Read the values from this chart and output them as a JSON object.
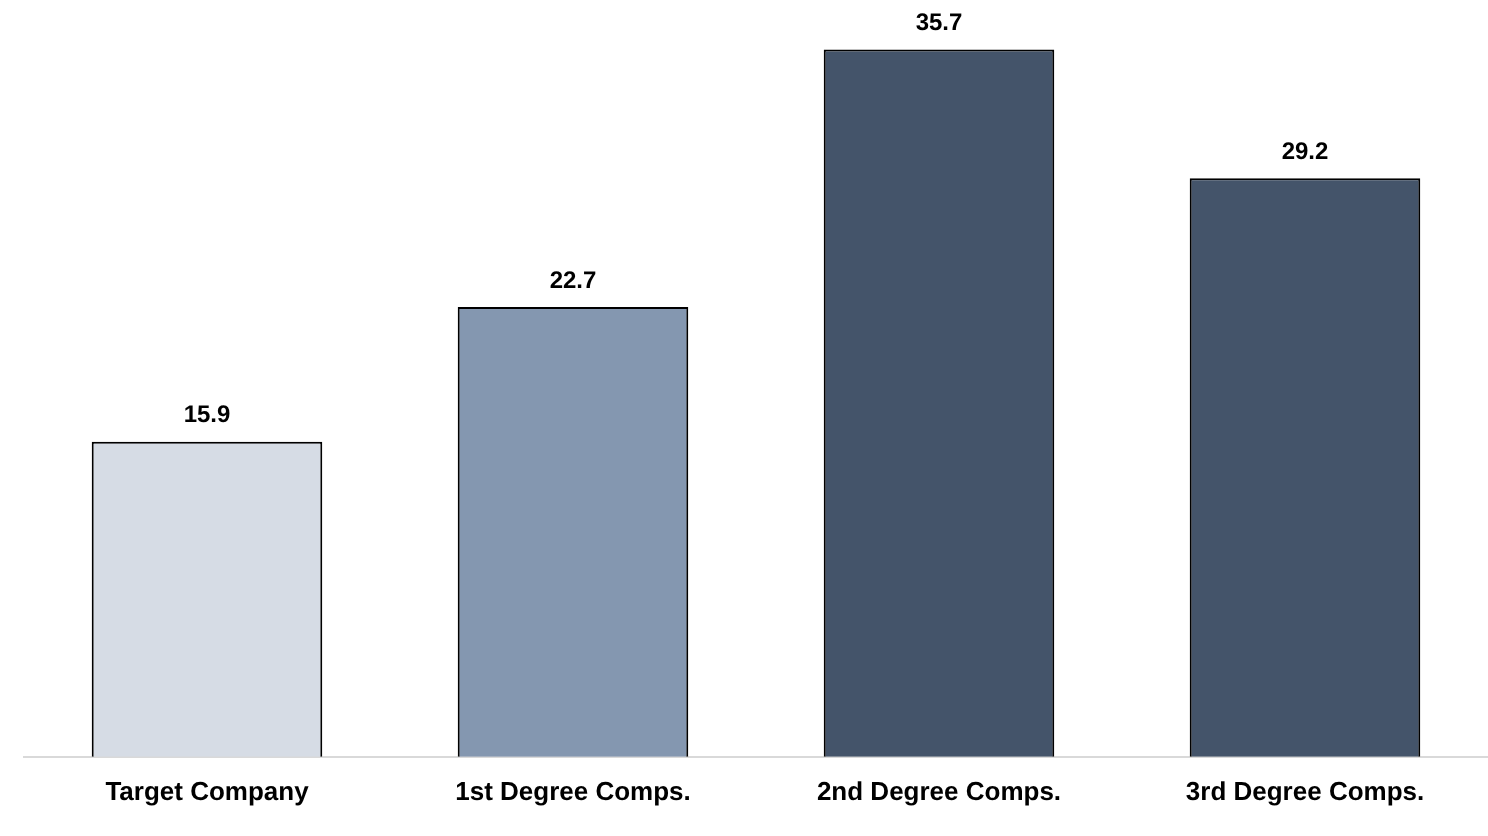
{
  "chart_data": {
    "type": "bar",
    "categories": [
      "Target Company",
      "1st Degree Comps.",
      "2nd Degree Comps.",
      "3rd Degree Comps."
    ],
    "values": [
      15.9,
      22.7,
      35.7,
      29.2
    ],
    "colors": [
      "#d6dce5",
      "#8497b0",
      "#44546a",
      "#44546a"
    ],
    "data_labels": true,
    "grid": false,
    "legend": false
  }
}
